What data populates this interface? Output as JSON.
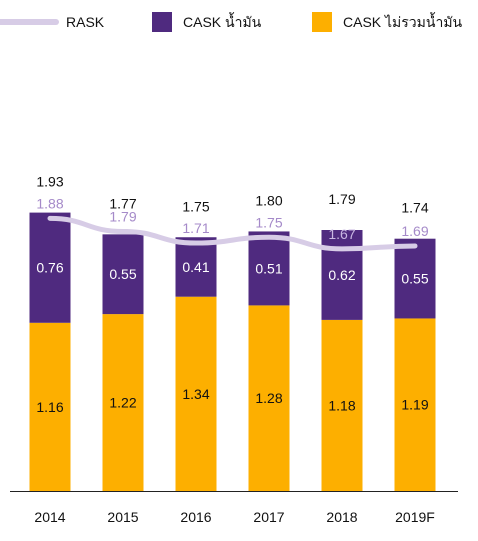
{
  "chart_data": {
    "type": "bar",
    "stacked": true,
    "categories": [
      "2014",
      "2015",
      "2016",
      "2017",
      "2018",
      "2019F"
    ],
    "series": [
      {
        "name": "CASK ไม่รวมน้ำมัน",
        "values": [
          1.16,
          1.22,
          1.34,
          1.28,
          1.18,
          1.19
        ],
        "color": "#FDAF00"
      },
      {
        "name": "CASK น้ำมัน",
        "values": [
          0.76,
          0.55,
          0.41,
          0.51,
          0.62,
          0.55
        ],
        "color": "#4F2A7F"
      }
    ],
    "totals": [
      "1.93",
      "1.77",
      "1.75",
      "1.80",
      "1.79",
      "1.74"
    ],
    "line_series": {
      "name": "RASK",
      "values": [
        1.88,
        1.79,
        1.71,
        1.75,
        1.67,
        1.69
      ],
      "labels": [
        "1.88",
        "1.79",
        "1.71",
        "1.75",
        "1.67",
        "1.69"
      ],
      "color": "#D7CCE6",
      "label_color": "#A58AC9",
      "label_color_on_bar": "#C9B7E2"
    },
    "legend": {
      "placement": "top",
      "items": [
        {
          "label": "RASK",
          "kind": "line",
          "color": "#D7CCE6"
        },
        {
          "label": "CASK น้ำมัน",
          "kind": "square",
          "color": "#4F2A7F"
        },
        {
          "label": "CASK ไม่รวมน้ำมัน",
          "kind": "square",
          "color": "#FDAF00"
        }
      ]
    },
    "ylim": [
      0,
      2.5
    ],
    "grid": false,
    "title": "",
    "xlabel": "",
    "ylabel": ""
  }
}
